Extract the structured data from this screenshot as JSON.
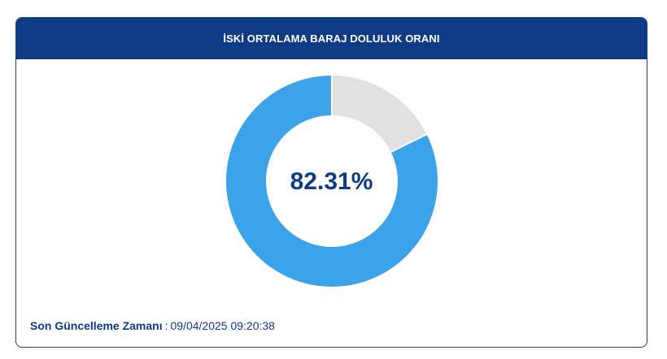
{
  "header": {
    "title": "İSKİ ORTALAMA BARAJ DOLULUK ORANI"
  },
  "chart_data": {
    "type": "pie",
    "variant": "donut",
    "center_label": "82.31%",
    "slices": [
      {
        "label": "",
        "value": 82.31,
        "color": "#3aa3ea"
      },
      {
        "label": "",
        "value": 17.69,
        "color": "#e1e1e1"
      }
    ],
    "start": "top",
    "direction": "clockwise-from-empty",
    "legend": "none"
  },
  "footer": {
    "label": "Son Güncelleme Zamanı",
    "separator": ":",
    "timestamp": "09/04/2025 09:20:38"
  },
  "colors": {
    "brand": "#0f3a85",
    "filled": "#3aa3ea",
    "empty": "#e1e1e1"
  }
}
